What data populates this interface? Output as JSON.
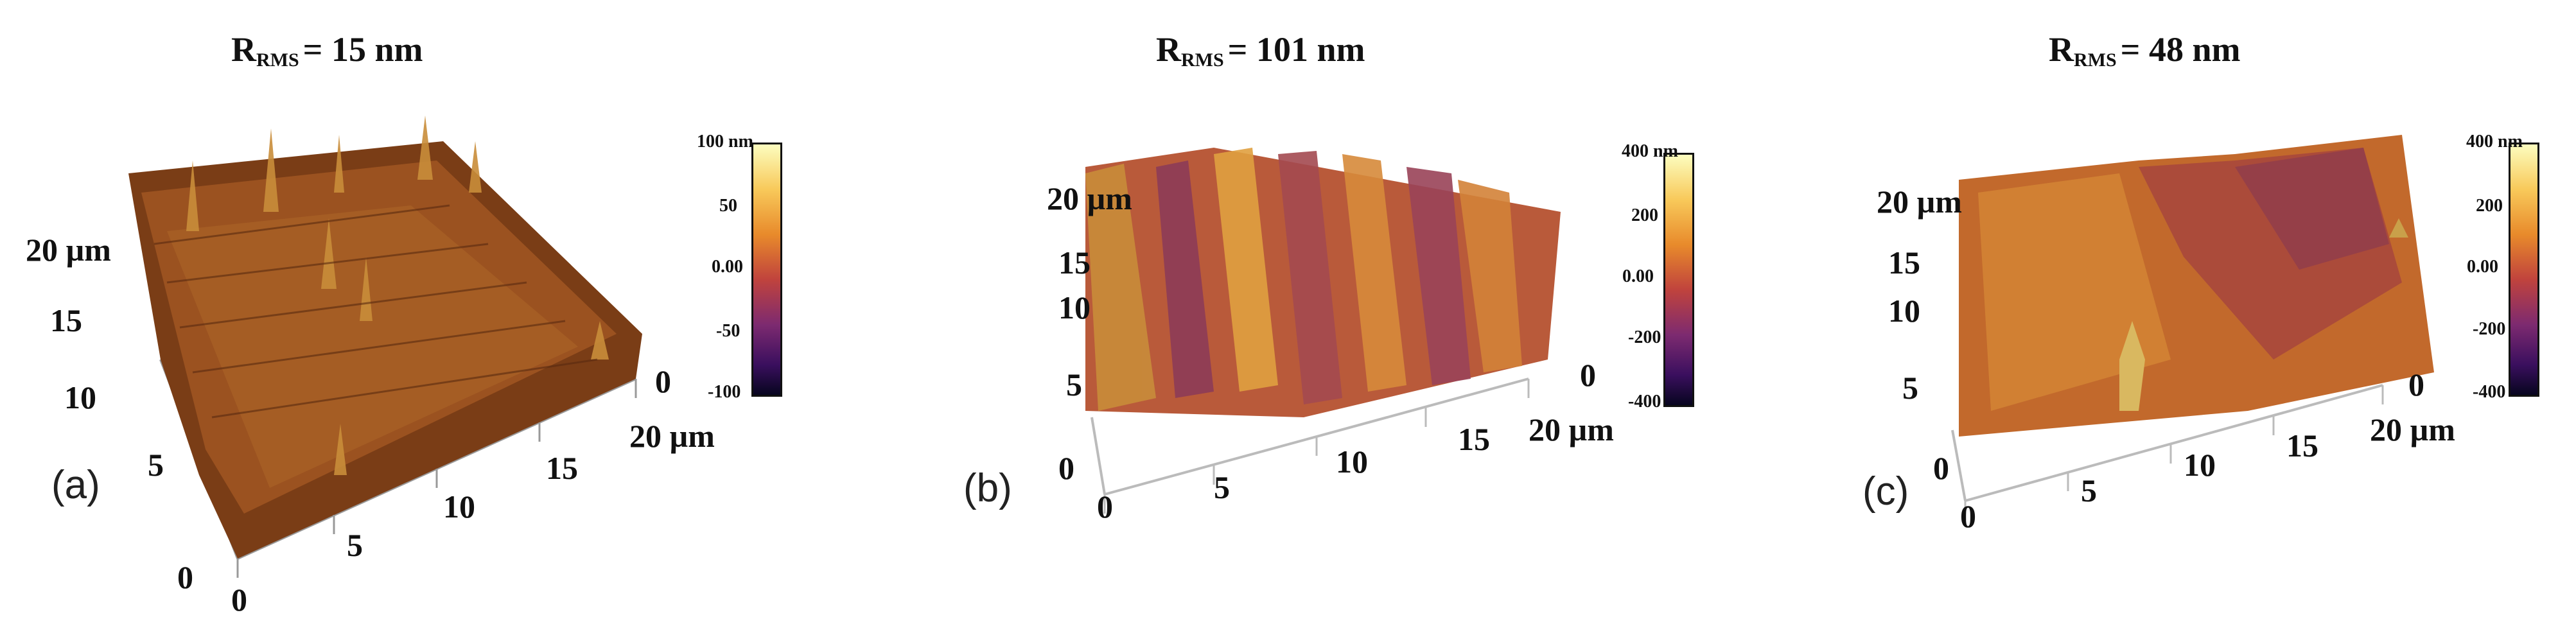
{
  "panels": [
    {
      "label": "(a)",
      "title_r": "R",
      "title_sub": "RMS",
      "title_eq": "= 15 nm",
      "y_ticks": [
        "20 µm",
        "15",
        "10",
        "5",
        "0"
      ],
      "x_ticks": [
        "0",
        "5",
        "10",
        "15",
        "20 µm"
      ],
      "z_ticks": [
        "0",
        "20 µm"
      ],
      "colorbar": [
        "100 nm",
        "50",
        "0.00",
        "-50",
        "-100"
      ]
    },
    {
      "label": "(b)",
      "title_r": "R",
      "title_sub": "RMS",
      "title_eq": "= 101 nm",
      "y_ticks": [
        "20 µm",
        "15",
        "10",
        "5",
        "0"
      ],
      "x_ticks": [
        "0",
        "5",
        "10",
        "15",
        "20 µm"
      ],
      "z_ticks": [
        "0"
      ],
      "colorbar": [
        "400 nm",
        "200",
        "0.00",
        "-200",
        "-400"
      ]
    },
    {
      "label": "(c)",
      "title_r": "R",
      "title_sub": "RMS",
      "title_eq": "= 48 nm",
      "y_ticks": [
        "20 µm",
        "15",
        "10",
        "5",
        "0"
      ],
      "x_ticks": [
        "0",
        "5",
        "10",
        "15",
        "20 µm"
      ],
      "z_ticks": [
        "0"
      ],
      "colorbar": [
        "400 nm",
        "200",
        "0.00",
        "-200",
        "-400"
      ]
    }
  ],
  "colors": {
    "colormap": [
      "#07051f",
      "#3a0f5e",
      "#7d2a70",
      "#c0433d",
      "#e88a2b",
      "#f8c95a",
      "#fcfdbf"
    ],
    "surface_a": "#8a4a1c",
    "surface_b": "#c96a35",
    "surface_c": "#c7702f"
  }
}
